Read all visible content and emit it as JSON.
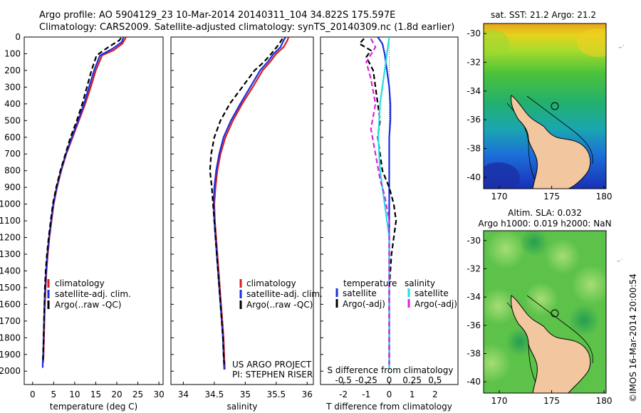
{
  "header": {
    "line1": "Argo profile: AO 5904129_23 10-Mar-2014 20140311_104 34.822S 175.597E",
    "line2": "Climatology: CARS2009. Satellite-adjusted climatology: synTS_20140309.nc (1.8d earlier)"
  },
  "credits": {
    "line1": "US ARGO PROJECT",
    "line2": "PI: STEPHEN RISER"
  },
  "imos_stamp": "©IMOS 16-Mar-2014 20:00:54",
  "colors": {
    "climatology": "#d81e1e",
    "satellite": "#1a2ee0",
    "argo": "#000000",
    "sal_satellite": "#22dede",
    "sal_argo": "#e020e0",
    "land": "#f2c69e"
  },
  "chart_data": [
    {
      "id": "temperature",
      "type": "line",
      "xlabel": "temperature (deg C)",
      "ylabel": "",
      "xlim": [
        -2,
        31
      ],
      "ylim": [
        2080,
        0
      ],
      "xticks": [
        0,
        5,
        10,
        15,
        20,
        25,
        30
      ],
      "yticks": [
        0,
        100,
        200,
        300,
        400,
        500,
        600,
        700,
        800,
        900,
        1000,
        1100,
        1200,
        1300,
        1400,
        1500,
        1600,
        1700,
        1800,
        1900,
        2000
      ],
      "legend": {
        "entries": [
          "climatology",
          "satellite-adj. clim.",
          "Argo(..raw -QC)"
        ],
        "placement": "lower-right"
      },
      "series": [
        {
          "name": "climatology",
          "style": "solid",
          "color": "#d81e1e",
          "points": [
            [
              22.2,
              0
            ],
            [
              22.0,
              10
            ],
            [
              21.3,
              40
            ],
            [
              19.2,
              80
            ],
            [
              16.5,
              110
            ],
            [
              15.0,
              200
            ],
            [
              13.8,
              300
            ],
            [
              12.5,
              400
            ],
            [
              11.0,
              500
            ],
            [
              9.5,
              600
            ],
            [
              8.0,
              700
            ],
            [
              6.8,
              800
            ],
            [
              5.8,
              900
            ],
            [
              5.0,
              1000
            ],
            [
              4.5,
              1100
            ],
            [
              4.0,
              1200
            ],
            [
              3.6,
              1300
            ],
            [
              3.3,
              1400
            ],
            [
              3.1,
              1500
            ],
            [
              2.9,
              1600
            ],
            [
              2.8,
              1700
            ],
            [
              2.7,
              1800
            ],
            [
              2.6,
              1900
            ],
            [
              2.5,
              1950
            ]
          ]
        },
        {
          "name": "satellite-adj. clim.",
          "style": "solid",
          "color": "#1a2ee0",
          "points": [
            [
              21.6,
              0
            ],
            [
              21.2,
              30
            ],
            [
              19.0,
              70
            ],
            [
              16.0,
              110
            ],
            [
              14.6,
              200
            ],
            [
              13.4,
              300
            ],
            [
              12.2,
              400
            ],
            [
              10.8,
              500
            ],
            [
              9.3,
              600
            ],
            [
              7.9,
              700
            ],
            [
              6.7,
              800
            ],
            [
              5.7,
              900
            ],
            [
              4.9,
              1000
            ],
            [
              4.4,
              1100
            ],
            [
              3.9,
              1200
            ],
            [
              3.5,
              1300
            ],
            [
              3.2,
              1400
            ],
            [
              3.0,
              1500
            ],
            [
              2.8,
              1600
            ],
            [
              2.7,
              1700
            ],
            [
              2.6,
              1800
            ],
            [
              2.5,
              1900
            ],
            [
              2.4,
              1950
            ],
            [
              2.4,
              1980
            ]
          ]
        },
        {
          "name": "Argo(..raw -QC)",
          "style": "dashed",
          "color": "#000000",
          "points": [
            [
              21.0,
              5
            ],
            [
              20.6,
              20
            ],
            [
              18.0,
              60
            ],
            [
              15.2,
              110
            ],
            [
              14.0,
              200
            ],
            [
              12.9,
              300
            ],
            [
              11.8,
              400
            ],
            [
              10.5,
              500
            ],
            [
              9.0,
              600
            ],
            [
              7.8,
              700
            ],
            [
              6.6,
              800
            ],
            [
              5.6,
              900
            ],
            [
              4.8,
              1000
            ],
            [
              4.3,
              1100
            ],
            [
              3.8,
              1200
            ],
            [
              3.4,
              1300
            ],
            [
              3.1,
              1400
            ],
            [
              2.9,
              1500
            ],
            [
              2.8,
              1600
            ],
            [
              2.7,
              1700
            ],
            [
              2.6,
              1800
            ],
            [
              2.5,
              1900
            ],
            [
              2.4,
              1950
            ]
          ]
        }
      ]
    },
    {
      "id": "salinity",
      "type": "line",
      "xlabel": "salinity",
      "ylabel": "",
      "xlim": [
        33.8,
        36.1
      ],
      "ylim": [
        2080,
        0
      ],
      "xticks": [
        34,
        34.5,
        35,
        35.5,
        36
      ],
      "xticklabels": [
        "34",
        "34.5",
        "35",
        "35.5",
        "36"
      ],
      "legend": {
        "entries": [
          "climatology",
          "satellite-adj. clim.",
          "Argo(..raw -QC)"
        ],
        "placement": "lower-right"
      },
      "series": [
        {
          "name": "climatology",
          "style": "solid",
          "color": "#d81e1e",
          "points": [
            [
              35.7,
              0
            ],
            [
              35.68,
              20
            ],
            [
              35.62,
              60
            ],
            [
              35.5,
              100
            ],
            [
              35.4,
              150
            ],
            [
              35.28,
              200
            ],
            [
              35.12,
              300
            ],
            [
              34.95,
              400
            ],
            [
              34.8,
              500
            ],
            [
              34.68,
              600
            ],
            [
              34.6,
              700
            ],
            [
              34.55,
              800
            ],
            [
              34.52,
              900
            ],
            [
              34.5,
              1000
            ],
            [
              34.51,
              1100
            ],
            [
              34.53,
              1200
            ],
            [
              34.55,
              1300
            ],
            [
              34.57,
              1400
            ],
            [
              34.59,
              1500
            ],
            [
              34.61,
              1600
            ],
            [
              34.63,
              1700
            ],
            [
              34.65,
              1800
            ],
            [
              34.66,
              1900
            ],
            [
              34.67,
              1990
            ]
          ]
        },
        {
          "name": "satellite-adj. clim.",
          "style": "solid",
          "color": "#1a2ee0",
          "points": [
            [
              35.65,
              0
            ],
            [
              35.62,
              20
            ],
            [
              35.57,
              60
            ],
            [
              35.46,
              100
            ],
            [
              35.36,
              150
            ],
            [
              35.24,
              200
            ],
            [
              35.08,
              300
            ],
            [
              34.92,
              400
            ],
            [
              34.77,
              500
            ],
            [
              34.65,
              600
            ],
            [
              34.58,
              700
            ],
            [
              34.53,
              800
            ],
            [
              34.5,
              900
            ],
            [
              34.49,
              1000
            ],
            [
              34.5,
              1100
            ],
            [
              34.52,
              1200
            ],
            [
              34.54,
              1300
            ],
            [
              34.56,
              1400
            ],
            [
              34.58,
              1500
            ],
            [
              34.6,
              1600
            ],
            [
              34.62,
              1700
            ],
            [
              34.64,
              1800
            ],
            [
              34.65,
              1900
            ],
            [
              34.66,
              1990
            ]
          ]
        },
        {
          "name": "Argo(..raw -QC)",
          "style": "dashed",
          "color": "#000000",
          "points": [
            [
              35.6,
              10
            ],
            [
              35.55,
              40
            ],
            [
              35.42,
              100
            ],
            [
              35.3,
              150
            ],
            [
              35.15,
              200
            ],
            [
              34.95,
              300
            ],
            [
              34.75,
              400
            ],
            [
              34.6,
              500
            ],
            [
              34.5,
              600
            ],
            [
              34.45,
              700
            ],
            [
              34.43,
              800
            ],
            [
              34.46,
              900
            ],
            [
              34.48,
              1000
            ],
            [
              34.5,
              1100
            ],
            [
              34.52,
              1200
            ],
            [
              34.54,
              1300
            ],
            [
              34.56,
              1400
            ],
            [
              34.58,
              1500
            ],
            [
              34.6,
              1600
            ],
            [
              34.62,
              1700
            ],
            [
              34.64,
              1800
            ],
            [
              34.65,
              1900
            ],
            [
              34.66,
              1960
            ]
          ]
        }
      ]
    },
    {
      "id": "differences",
      "type": "line",
      "xlabel": "T difference from climatology",
      "xlabel_top": "S difference from climatology",
      "xlim": [
        -3,
        3
      ],
      "ylim": [
        2080,
        0
      ],
      "xticks_T": [
        -2,
        -1,
        0,
        1,
        2
      ],
      "xticks_S": [
        -0.5,
        -0.25,
        0,
        0.25,
        0.5
      ],
      "xticklabels_S": [
        "-0.5",
        "-0.25",
        "0",
        "0.25",
        "0.5"
      ],
      "legend": {
        "temperature_title": "temperature",
        "salinity_title": "salinity",
        "temperature_entries": [
          "satellite",
          "Argo(-adj)"
        ],
        "salinity_entries": [
          "satellite",
          "Argo(-adj)"
        ],
        "placement": "lower-center"
      },
      "series": [
        {
          "name": "satellite",
          "quantity": "temperature",
          "style": "solid",
          "color": "#1a2ee0",
          "points": [
            [
              -0.5,
              0
            ],
            [
              -0.3,
              40
            ],
            [
              -0.2,
              100
            ],
            [
              -0.1,
              200
            ],
            [
              0.0,
              300
            ],
            [
              0.05,
              400
            ],
            [
              0.05,
              500
            ],
            [
              0.0,
              600
            ],
            [
              0.0,
              700
            ],
            [
              0.0,
              800
            ],
            [
              0.0,
              900
            ],
            [
              0.0,
              1000
            ],
            [
              0.0,
              1100
            ],
            [
              0.0,
              1200
            ],
            [
              0.0,
              1300
            ],
            [
              0.0,
              1400
            ],
            [
              0.0,
              1500
            ],
            [
              0.0,
              1600
            ],
            [
              0.0,
              1700
            ],
            [
              0.0,
              1800
            ],
            [
              0.0,
              1900
            ],
            [
              0.0,
              1990
            ]
          ]
        },
        {
          "name": "Argo(-adj)",
          "quantity": "temperature",
          "style": "dashed",
          "color": "#000000",
          "points": [
            [
              -1.1,
              10
            ],
            [
              -1.3,
              40
            ],
            [
              -0.8,
              80
            ],
            [
              -1.0,
              120
            ],
            [
              -0.7,
              200
            ],
            [
              -0.6,
              300
            ],
            [
              -0.5,
              400
            ],
            [
              -0.4,
              500
            ],
            [
              -0.5,
              600
            ],
            [
              -0.4,
              700
            ],
            [
              -0.3,
              800
            ],
            [
              0.0,
              900
            ],
            [
              0.2,
              1000
            ],
            [
              0.3,
              1100
            ],
            [
              0.2,
              1200
            ],
            [
              0.1,
              1300
            ],
            [
              0.05,
              1400
            ],
            [
              0.0,
              1500
            ],
            [
              0.0,
              1600
            ],
            [
              0.0,
              1700
            ],
            [
              0.0,
              1800
            ],
            [
              0.0,
              1900
            ],
            [
              0.0,
              1960
            ]
          ]
        },
        {
          "name": "satellite",
          "quantity": "salinity",
          "style": "solid",
          "color": "#22dede",
          "points": [
            [
              0.0,
              0
            ],
            [
              -0.05,
              200
            ],
            [
              -0.1,
              400
            ],
            [
              -0.12,
              600
            ],
            [
              -0.1,
              800
            ],
            [
              -0.05,
              1000
            ],
            [
              0.0,
              1200
            ],
            [
              0.0,
              1400
            ],
            [
              0.0,
              1600
            ],
            [
              0.0,
              1800
            ],
            [
              0.0,
              1990
            ]
          ]
        },
        {
          "name": "Argo(-adj)",
          "quantity": "salinity",
          "style": "dashed",
          "color": "#e020e0",
          "points": [
            [
              -0.2,
              10
            ],
            [
              -0.15,
              60
            ],
            [
              -0.25,
              150
            ],
            [
              -0.2,
              250
            ],
            [
              -0.15,
              400
            ],
            [
              -0.2,
              550
            ],
            [
              -0.15,
              700
            ],
            [
              -0.1,
              850
            ],
            [
              -0.05,
              950
            ],
            [
              0.0,
              1100
            ],
            [
              0.0,
              1300
            ],
            [
              0.0,
              1500
            ],
            [
              0.0,
              1700
            ],
            [
              0.0,
              1900
            ],
            [
              0.0,
              1960
            ]
          ]
        }
      ]
    }
  ],
  "maps": [
    {
      "id": "sst-map",
      "title_lines": [
        "sat. SST: 21.2  Argo: 21.2"
      ],
      "xticks": [
        170,
        175,
        180
      ],
      "yticks": [
        -30,
        -32,
        -34,
        -36,
        -38,
        -40
      ],
      "xlim": [
        168.5,
        180.2
      ],
      "ylim": [
        -40.8,
        -29.3
      ]
    },
    {
      "id": "sla-map",
      "title_lines": [
        "Altim. SLA: 0.032",
        "Argo h1000: 0.019 h2000: NaN"
      ],
      "xticks": [
        170,
        175,
        180
      ],
      "yticks": [
        -30,
        -32,
        -34,
        -36,
        -38,
        -40
      ],
      "xlim": [
        168.5,
        180.2
      ],
      "ylim": [
        -40.8,
        -29.3
      ]
    }
  ],
  "float_position": {
    "lon": 175.6,
    "lat": -34.8
  }
}
